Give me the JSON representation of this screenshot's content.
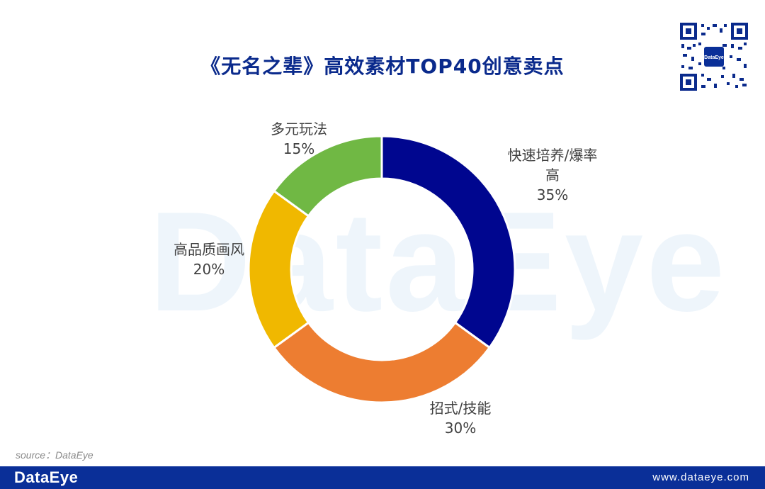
{
  "title": "《无名之辈》高效素材TOP40创意卖点",
  "watermark": "DataEye",
  "source": "source：DataEye",
  "footer": {
    "brand": "DataEye",
    "url": "www.dataeye.com"
  },
  "qr_logo_text": "DataEye",
  "colors": {
    "title": "#0a2a8c",
    "footer_bg": "#0a2f98",
    "slice_1": "#00068f",
    "slice_2": "#ed7d31",
    "slice_3": "#f0b800",
    "slice_4": "#70b844"
  },
  "chart_data": {
    "type": "pie",
    "donut": true,
    "title": "《无名之辈》高效素材TOP40创意卖点",
    "start": "top, clockwise",
    "slices": [
      {
        "label_lines": [
          "快速培养/爆率",
          "高"
        ],
        "value": 35,
        "value_label": "35%",
        "color": "#00068f"
      },
      {
        "label_lines": [
          "招式/技能"
        ],
        "value": 30,
        "value_label": "30%",
        "color": "#ed7d31"
      },
      {
        "label_lines": [
          "高品质画风"
        ],
        "value": 20,
        "value_label": "20%",
        "color": "#f0b800"
      },
      {
        "label_lines": [
          "多元玩法"
        ],
        "value": 15,
        "value_label": "15%",
        "color": "#70b844"
      }
    ]
  }
}
